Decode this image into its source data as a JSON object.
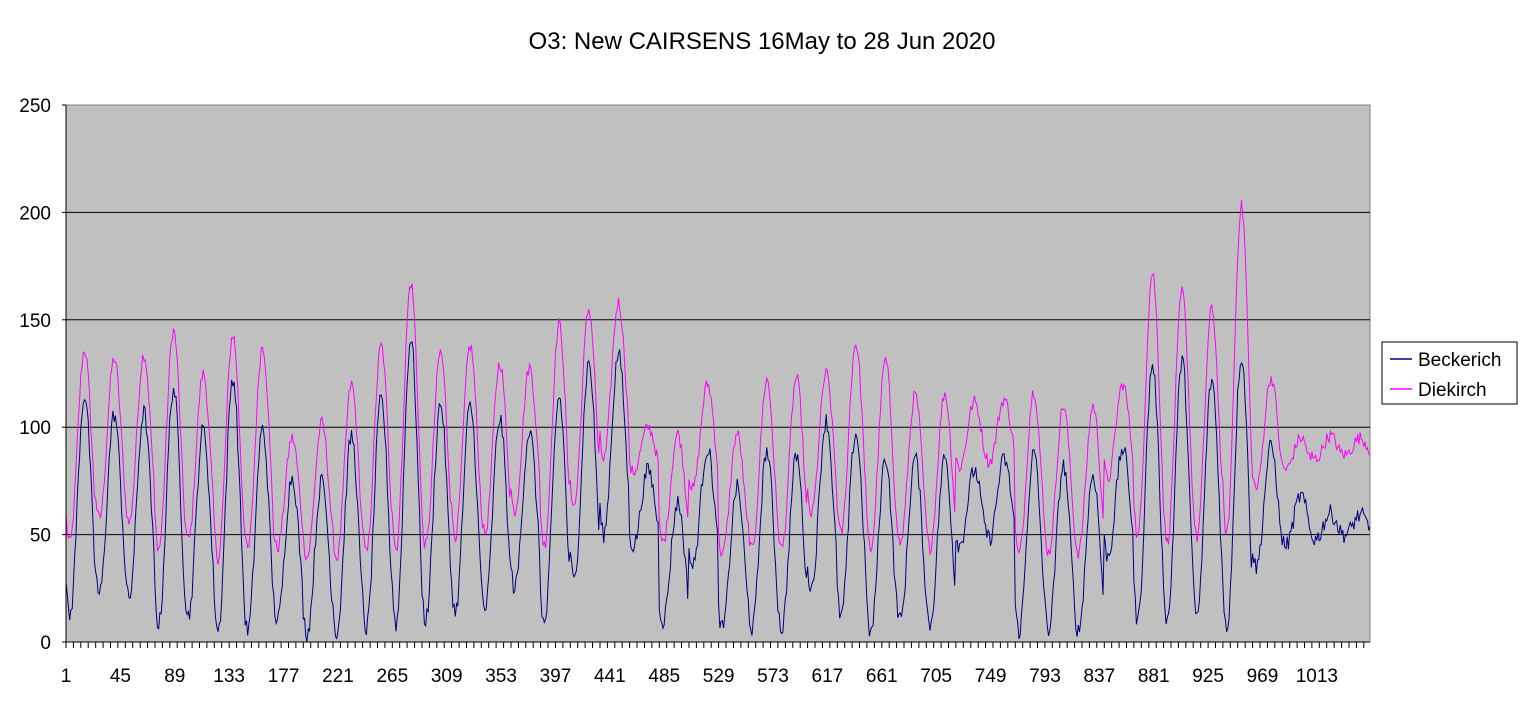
{
  "chart_data": {
    "type": "line",
    "title": "O3: New CAIRSENS  16May to 28 Jun 2020",
    "xlabel": "",
    "ylabel": "",
    "xlim": [
      1,
      1056
    ],
    "ylim": [
      0,
      250
    ],
    "yticks": [
      0,
      50,
      100,
      150,
      200,
      250
    ],
    "xticks": [
      1,
      45,
      89,
      133,
      177,
      221,
      265,
      309,
      353,
      397,
      441,
      485,
      529,
      573,
      617,
      661,
      705,
      749,
      793,
      837,
      881,
      925,
      969,
      1013
    ],
    "grid": "horizontal",
    "plot_background": "#c0c0c0",
    "legend_position": "right",
    "series": [
      {
        "name": "Beckerich",
        "color": "#000080",
        "day_max": [
          115,
          106,
          107,
          118,
          99,
          123,
          99,
          77,
          75,
          96,
          113,
          141,
          111,
          110,
          104,
          98,
          114,
          130,
          134,
          80,
          65,
          90,
          72,
          89,
          87,
          103,
          97,
          86,
          86,
          86,
          80,
          85,
          88,
          82,
          78,
          90,
          129,
          131,
          122,
          133,
          91,
          68,
          60,
          59
        ],
        "day_min": [
          12,
          22,
          20,
          8,
          12,
          5,
          5,
          10,
          4,
          4,
          6,
          8,
          10,
          14,
          15,
          25,
          8,
          28,
          50,
          45,
          10,
          35,
          6,
          6,
          6,
          25,
          12,
          4,
          10,
          8,
          45,
          48,
          5,
          6,
          5,
          40,
          10,
          10,
          12,
          6,
          35,
          45,
          48,
          50
        ]
      },
      {
        "name": "Diekirch",
        "color": "#ff00ff",
        "day_max": [
          136,
          132,
          134,
          145,
          125,
          143,
          138,
          95,
          102,
          120,
          138,
          167,
          135,
          138,
          130,
          128,
          148,
          155,
          158,
          100,
          97,
          120,
          97,
          122,
          123,
          125,
          139,
          131,
          115,
          116,
          112,
          113,
          117,
          110,
          110,
          120,
          172,
          163,
          155,
          203,
          123,
          95,
          96,
          95
        ]
      }
    ]
  }
}
